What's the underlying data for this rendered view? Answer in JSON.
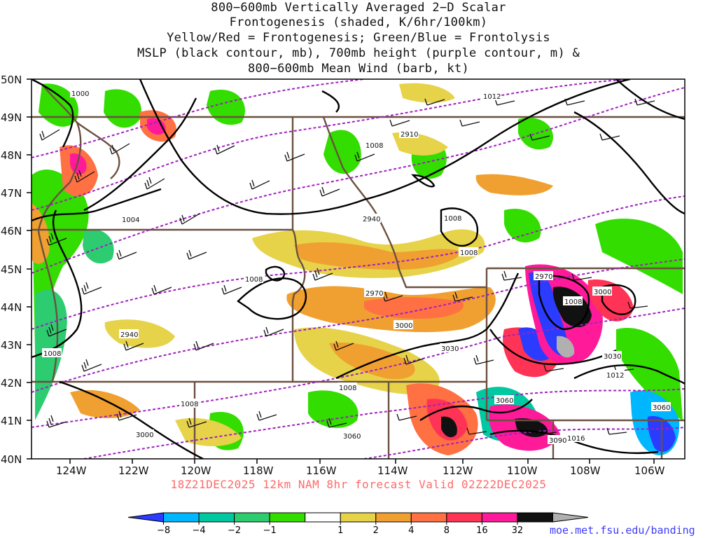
{
  "title_lines": [
    "800−600mb Vertically Averaged 2−D Scalar",
    "Frontogenesis (shaded, K/6hr/100km)",
    "Yellow/Red = Frontogenesis;  Green/Blue = Frontolysis",
    "MSLP (black contour, mb), 700mb height (purple contour, m) &",
    "800−600mb Mean Wind (barb, kt)"
  ],
  "lat_labels": [
    "50N",
    "49N",
    "48N",
    "47N",
    "46N",
    "45N",
    "44N",
    "43N",
    "42N",
    "41N",
    "40N"
  ],
  "lon_labels": [
    "124W",
    "122W",
    "120W",
    "118W",
    "116W",
    "114W",
    "112W",
    "110W",
    "108W",
    "106W"
  ],
  "mslp_labels": [
    "1000",
    "1012",
    "1008",
    "1004",
    "1008",
    "1008",
    "1008",
    "1008",
    "1008",
    "1008",
    "1012",
    "1016",
    "1008"
  ],
  "height_labels": [
    "2910",
    "2940",
    "2970",
    "2970",
    "3000",
    "3000",
    "3030",
    "3030",
    "3060",
    "3060",
    "3060",
    "3090",
    "2940",
    "3000"
  ],
  "colorbar": {
    "ticks": [
      "−8",
      "−4",
      "−2",
      "−1",
      "1",
      "2",
      "4",
      "8",
      "16",
      "32"
    ],
    "colors": [
      "#2b3bff",
      "#00b7ff",
      "#00c8a0",
      "#2ecc71",
      "#33dd00",
      "#ffffff",
      "#e6d34a",
      "#f0a030",
      "#ff7043",
      "#ff3355",
      "#ff1a99",
      "#111111",
      "#b0b0b0"
    ]
  },
  "run_info": "18Z21DEC2025 12km NAM 8hr forecast Valid 02Z22DEC2025",
  "credit": "moe.met.fsu.edu/banding"
}
